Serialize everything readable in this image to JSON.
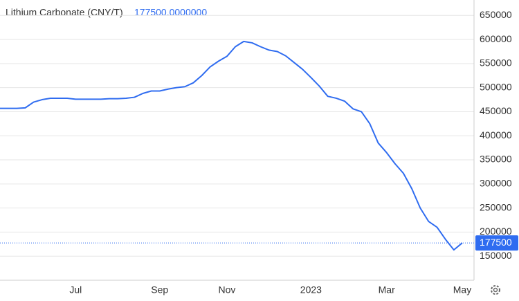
{
  "chart_data": {
    "type": "line",
    "title": "Lithium Carbonate (CNY/T)",
    "last_price_label": "177500.0000000",
    "categories": [
      null,
      null,
      null,
      null,
      null,
      null,
      null,
      null,
      null,
      "Jul",
      null,
      null,
      null,
      null,
      null,
      null,
      null,
      null,
      null,
      "Sep",
      null,
      null,
      null,
      null,
      null,
      null,
      null,
      "Nov",
      null,
      null,
      null,
      null,
      null,
      null,
      null,
      null,
      null,
      "2023",
      null,
      null,
      null,
      null,
      null,
      null,
      null,
      null,
      "Mar",
      null,
      null,
      null,
      null,
      null,
      null,
      null,
      null,
      "May"
    ],
    "series": [
      {
        "name": "Lithium Carbonate",
        "color": "#2f6cf0",
        "values": [
          457000,
          457000,
          457000,
          458000,
          470000,
          475000,
          478000,
          478000,
          478000,
          476000,
          476000,
          476000,
          476000,
          477000,
          477000,
          478000,
          480000,
          488000,
          493000,
          493000,
          497000,
          500000,
          502000,
          510000,
          525000,
          543000,
          555000,
          565000,
          585000,
          596000,
          593000,
          585000,
          578000,
          575000,
          566000,
          552000,
          538000,
          521000,
          503000,
          482000,
          478000,
          472000,
          456000,
          450000,
          425000,
          385000,
          365000,
          342000,
          322000,
          290000,
          250000,
          222000,
          210000,
          185000,
          163000,
          177500
        ]
      }
    ],
    "ylim": [
      100000,
      682000
    ],
    "yticks": [
      150000,
      200000,
      250000,
      300000,
      350000,
      400000,
      450000,
      500000,
      550000,
      600000,
      650000
    ],
    "grid": true,
    "y_axis_side": "right"
  }
}
